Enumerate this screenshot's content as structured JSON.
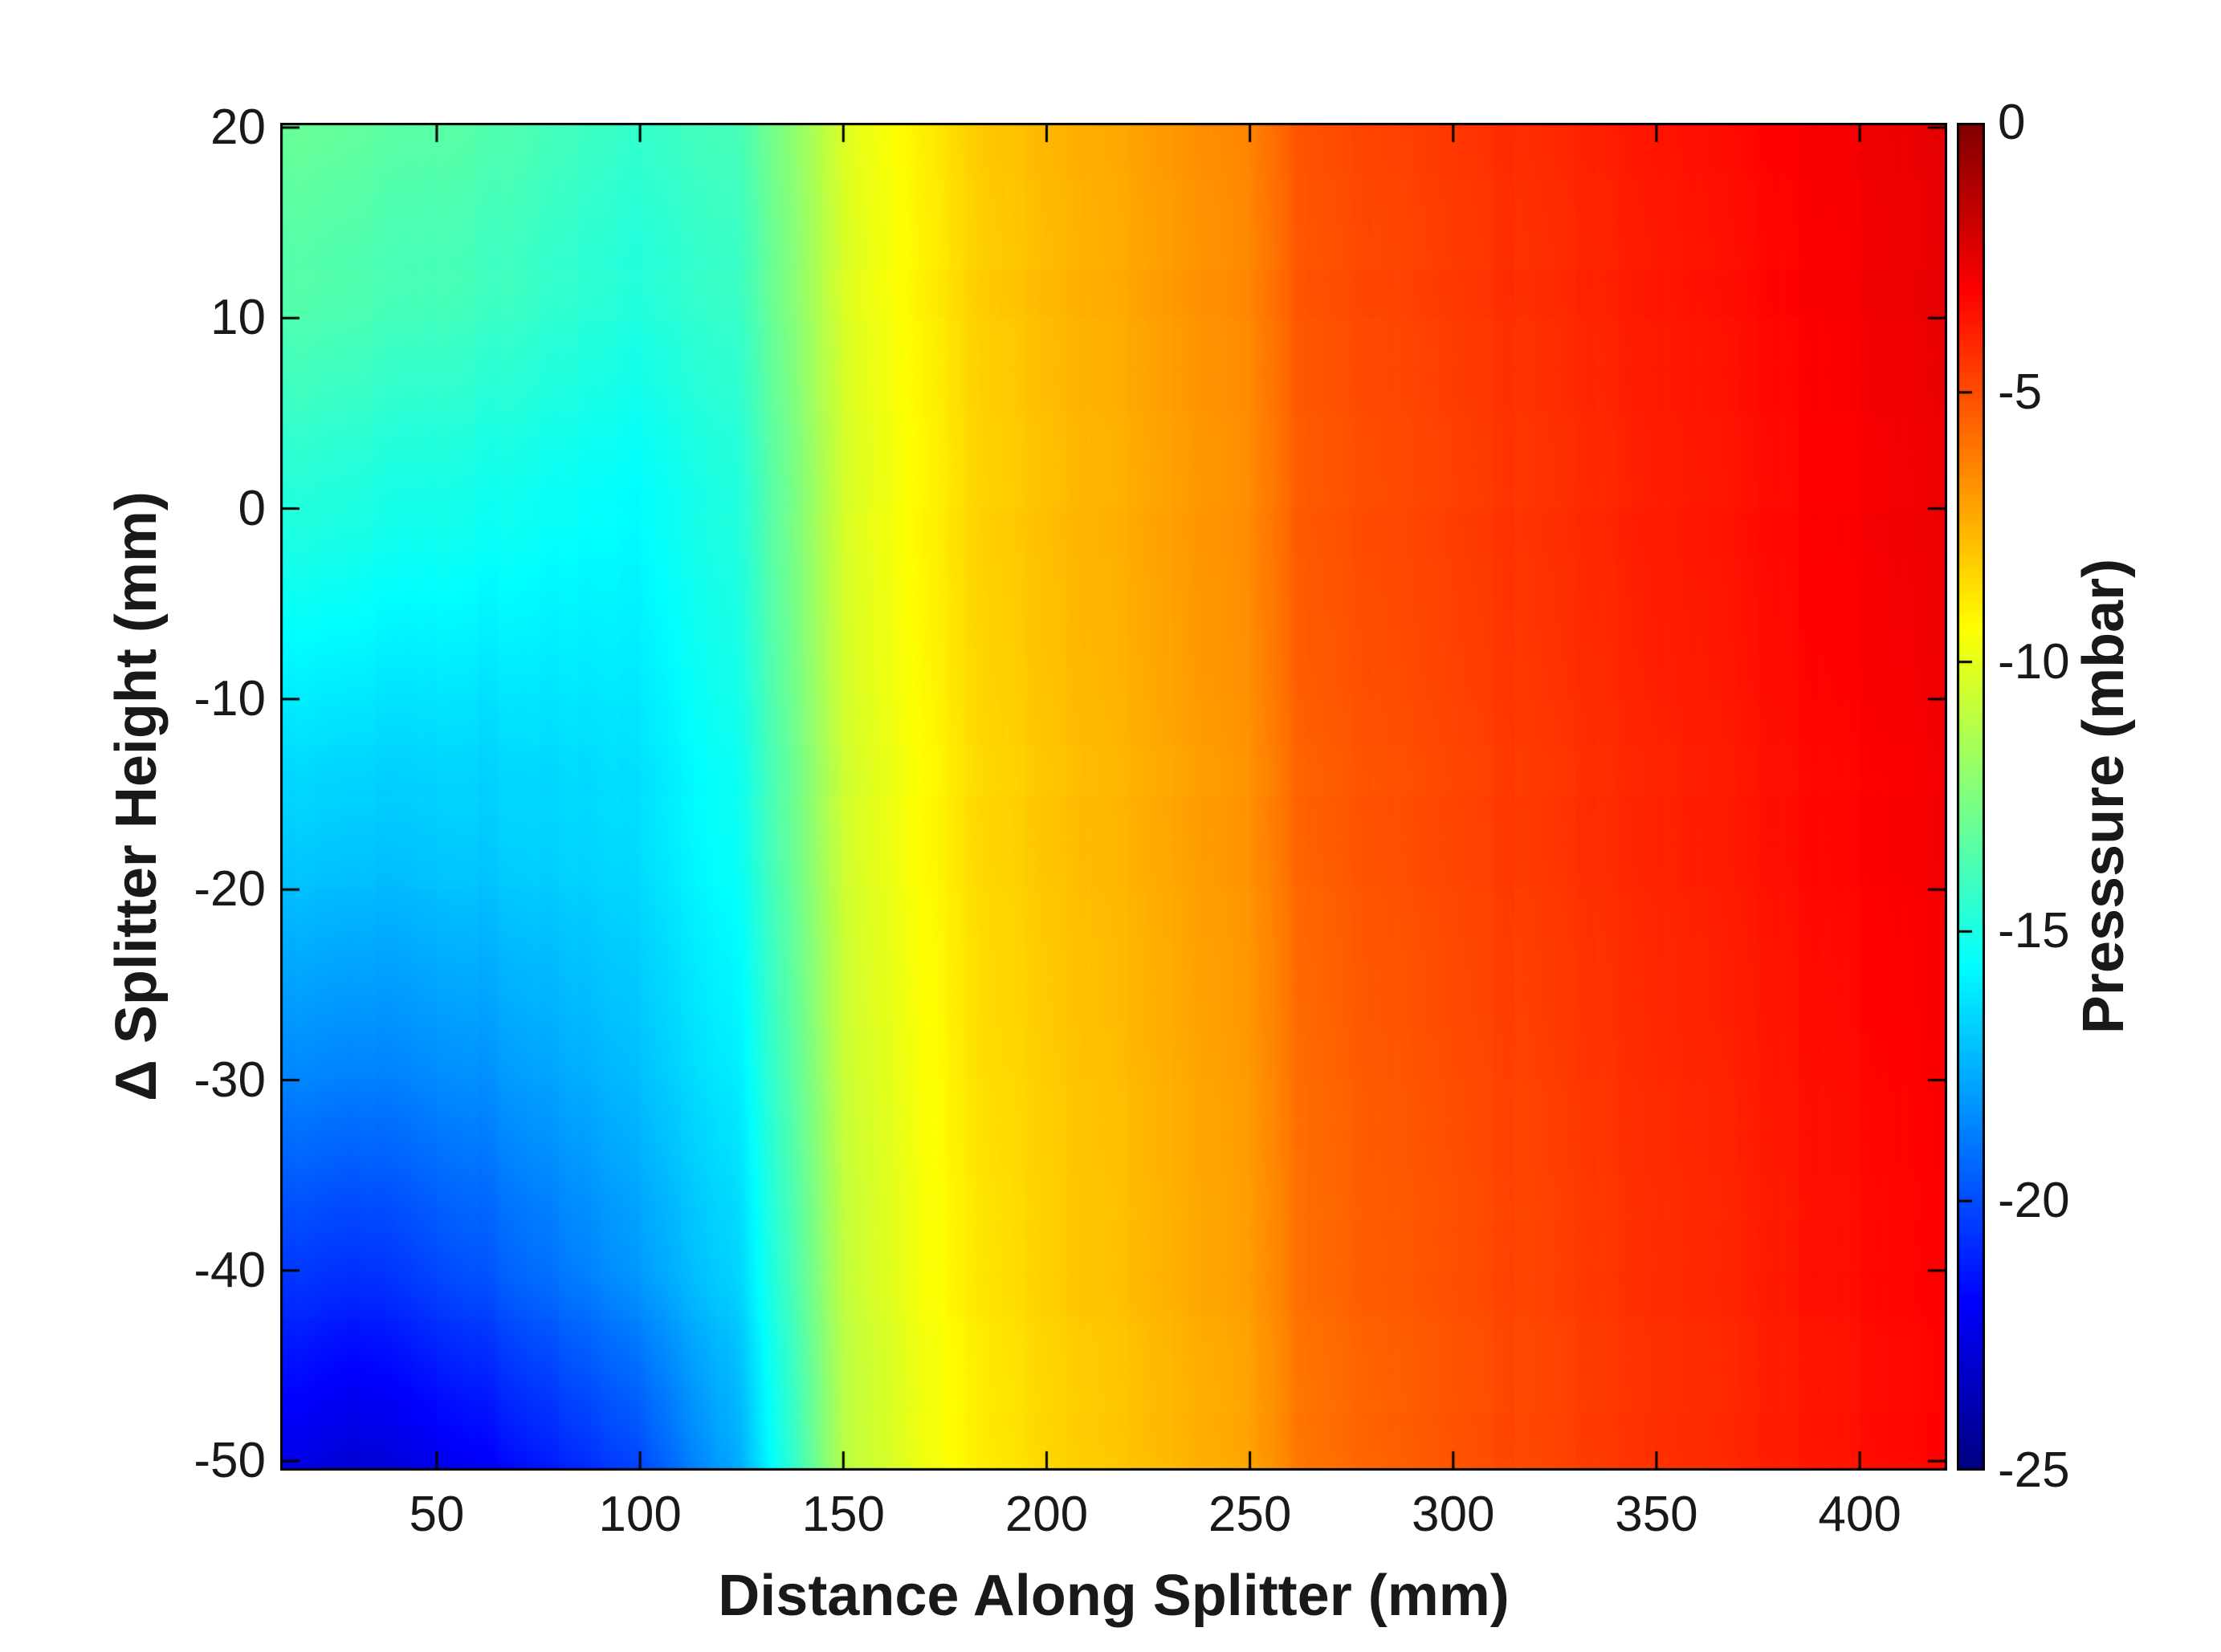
{
  "figure": {
    "background": "#ffffff",
    "text_color": "#191919",
    "xlabel": "Distance Along Splitter (mm)",
    "ylabel": "Δ Splitter Height (mm)",
    "colorbar_label": "Presssure (mbar)",
    "x_ticks": [
      "50",
      "100",
      "150",
      "200",
      "250",
      "300",
      "350",
      "400"
    ],
    "y_ticks": [
      "20",
      "10",
      "0",
      "-10",
      "-20",
      "-30",
      "-40",
      "-50"
    ],
    "colorbar_ticks": [
      "0",
      "-5",
      "-10",
      "-15",
      "-20",
      "-25"
    ]
  },
  "chart_data": {
    "type": "heatmap",
    "title": "",
    "xlabel": "Distance Along Splitter (mm)",
    "ylabel": "Δ Splitter Height (mm)",
    "colorbar_label": "Presssure (mbar)",
    "colormap": "jet",
    "grid_on": false,
    "x_range_mm": [
      11.5,
      421.5
    ],
    "y_range_mm": [
      -50.5,
      20.25
    ],
    "value_range_mbar": [
      -25,
      0
    ],
    "x_tick_values": [
      50,
      100,
      150,
      200,
      250,
      300,
      350,
      400
    ],
    "y_tick_values": [
      20,
      10,
      0,
      -10,
      -20,
      -30,
      -40,
      -50
    ],
    "colorbar_tick_values": [
      0,
      -5,
      -10,
      -15,
      -20,
      -25
    ],
    "grid_x_mm": [
      11.5,
      30,
      60,
      100,
      125,
      150,
      170,
      185,
      200,
      225,
      250,
      262,
      280,
      300,
      350,
      385,
      421.5
    ],
    "grid_y_mm": [
      20.25,
      10,
      0,
      -10,
      -20,
      -30,
      -40,
      -50.5
    ],
    "pressure_mbar": [
      [
        -13.0,
        -13.2,
        -13.6,
        -14.4,
        -13.8,
        -10.3,
        -8.9,
        -8.1,
        -7.6,
        -7.0,
        -6.3,
        -5.2,
        -4.8,
        -4.4,
        -3.6,
        -3.0,
        -2.4
      ],
      [
        -13.6,
        -13.8,
        -14.2,
        -14.9,
        -14.2,
        -10.4,
        -9.0,
        -8.2,
        -7.7,
        -7.1,
        -6.4,
        -5.3,
        -4.9,
        -4.5,
        -3.7,
        -3.1,
        -2.5
      ],
      [
        -14.7,
        -14.9,
        -15.3,
        -15.7,
        -14.7,
        -10.5,
        -9.1,
        -8.3,
        -7.8,
        -7.2,
        -6.5,
        -5.4,
        -5.0,
        -4.6,
        -3.8,
        -3.2,
        -2.6
      ],
      [
        -16.0,
        -16.2,
        -16.4,
        -16.2,
        -15.0,
        -10.6,
        -9.2,
        -8.4,
        -7.9,
        -7.3,
        -6.6,
        -5.5,
        -5.1,
        -4.7,
        -3.9,
        -3.3,
        -2.7
      ],
      [
        -17.1,
        -17.3,
        -17.2,
        -16.6,
        -15.4,
        -10.7,
        -9.3,
        -8.5,
        -8.0,
        -7.4,
        -6.7,
        -5.7,
        -5.2,
        -4.8,
        -4.0,
        -3.4,
        -2.8
      ],
      [
        -18.5,
        -18.7,
        -18.4,
        -17.2,
        -15.9,
        -10.8,
        -9.4,
        -8.6,
        -8.1,
        -7.5,
        -6.8,
        -5.8,
        -5.3,
        -4.9,
        -4.1,
        -3.5,
        -2.9
      ],
      [
        -20.4,
        -20.7,
        -19.9,
        -18.1,
        -16.5,
        -11.0,
        -9.5,
        -8.8,
        -8.2,
        -7.6,
        -6.9,
        -5.9,
        -5.4,
        -5.0,
        -4.2,
        -3.6,
        -3.0
      ],
      [
        -22.4,
        -23.0,
        -22.2,
        -20.2,
        -17.5,
        -11.2,
        -9.7,
        -9.0,
        -8.4,
        -7.8,
        -7.1,
        -6.1,
        -5.6,
        -5.1,
        -4.3,
        -3.7,
        -3.1
      ]
    ]
  }
}
